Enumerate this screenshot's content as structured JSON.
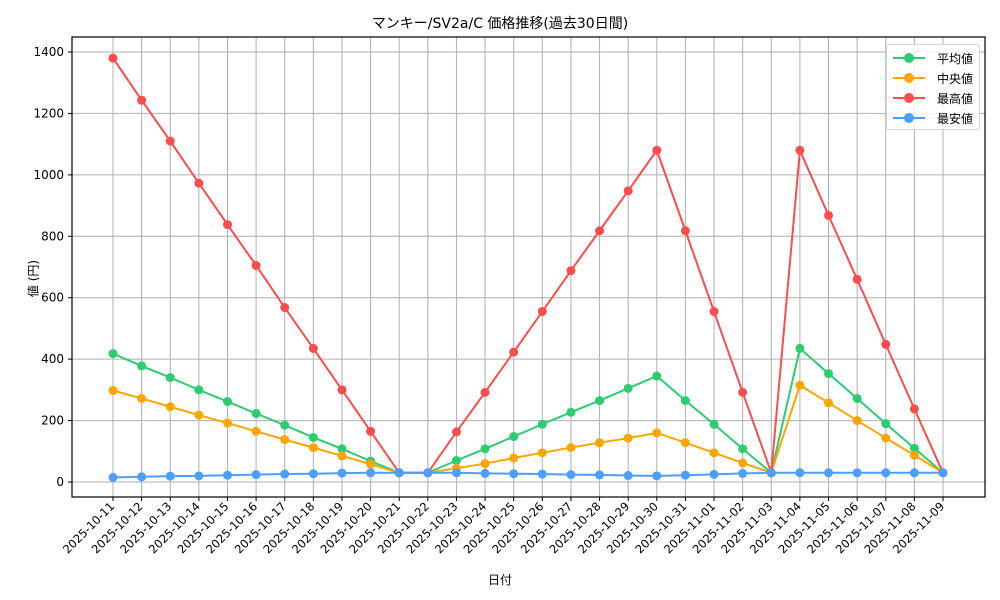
{
  "chart_data": {
    "type": "line",
    "title": "マンキー/SV2a/C 価格推移(過去30日間)",
    "xlabel": "日付",
    "ylabel": "値 (円)",
    "ylim": [
      -50,
      1450
    ],
    "yticks": [
      0,
      200,
      400,
      600,
      800,
      1000,
      1200,
      1400
    ],
    "grid": true,
    "legend_position": "upper right",
    "x": [
      "2025-10-11",
      "2025-10-12",
      "2025-10-13",
      "2025-10-14",
      "2025-10-15",
      "2025-10-16",
      "2025-10-17",
      "2025-10-18",
      "2025-10-19",
      "2025-10-20",
      "2025-10-21",
      "2025-10-22",
      "2025-10-23",
      "2025-10-24",
      "2025-10-25",
      "2025-10-26",
      "2025-10-27",
      "2025-10-28",
      "2025-10-29",
      "2025-10-30",
      "2025-10-31",
      "2025-11-01",
      "2025-11-02",
      "2025-11-03",
      "2025-11-04",
      "2025-11-05",
      "2025-11-06",
      "2025-11-07",
      "2025-11-08",
      "2025-11-09"
    ],
    "series": [
      {
        "name": "平均値",
        "color": "#2ecc71",
        "values": [
          418,
          378,
          340,
          300,
          262,
          223,
          185,
          145,
          108,
          68,
          30,
          30,
          70,
          108,
          148,
          188,
          227,
          265,
          305,
          345,
          265,
          188,
          108,
          30,
          435,
          353,
          272,
          190,
          110,
          30
        ]
      },
      {
        "name": "中央値",
        "color": "#ffa500",
        "values": [
          298,
          272,
          245,
          218,
          192,
          165,
          138,
          112,
          85,
          58,
          30,
          30,
          45,
          60,
          78,
          95,
          112,
          128,
          143,
          160,
          128,
          95,
          62,
          30,
          315,
          258,
          200,
          143,
          87,
          30
        ]
      },
      {
        "name": "最高値",
        "color": "#ff4d4d",
        "values": [
          1380,
          1243,
          1110,
          973,
          838,
          705,
          568,
          435,
          300,
          165,
          30,
          30,
          163,
          292,
          423,
          555,
          688,
          818,
          948,
          1080,
          818,
          555,
          292,
          30,
          1080,
          868,
          660,
          448,
          238,
          30
        ]
      },
      {
        "name": "最安値",
        "color": "#4d9fff",
        "values": [
          15,
          17,
          19,
          20,
          22,
          24,
          26,
          27,
          29,
          30,
          30,
          30,
          30,
          28,
          27,
          26,
          24,
          23,
          21,
          20,
          22,
          25,
          28,
          30,
          30,
          30,
          30,
          30,
          30,
          30
        ]
      }
    ]
  },
  "legend": {
    "items": [
      {
        "label": "平均値",
        "color": "#2ecc71"
      },
      {
        "label": "中央値",
        "color": "#ffa500"
      },
      {
        "label": "最高値",
        "color": "#ff4d4d"
      },
      {
        "label": "最安値",
        "color": "#4d9fff"
      }
    ]
  }
}
